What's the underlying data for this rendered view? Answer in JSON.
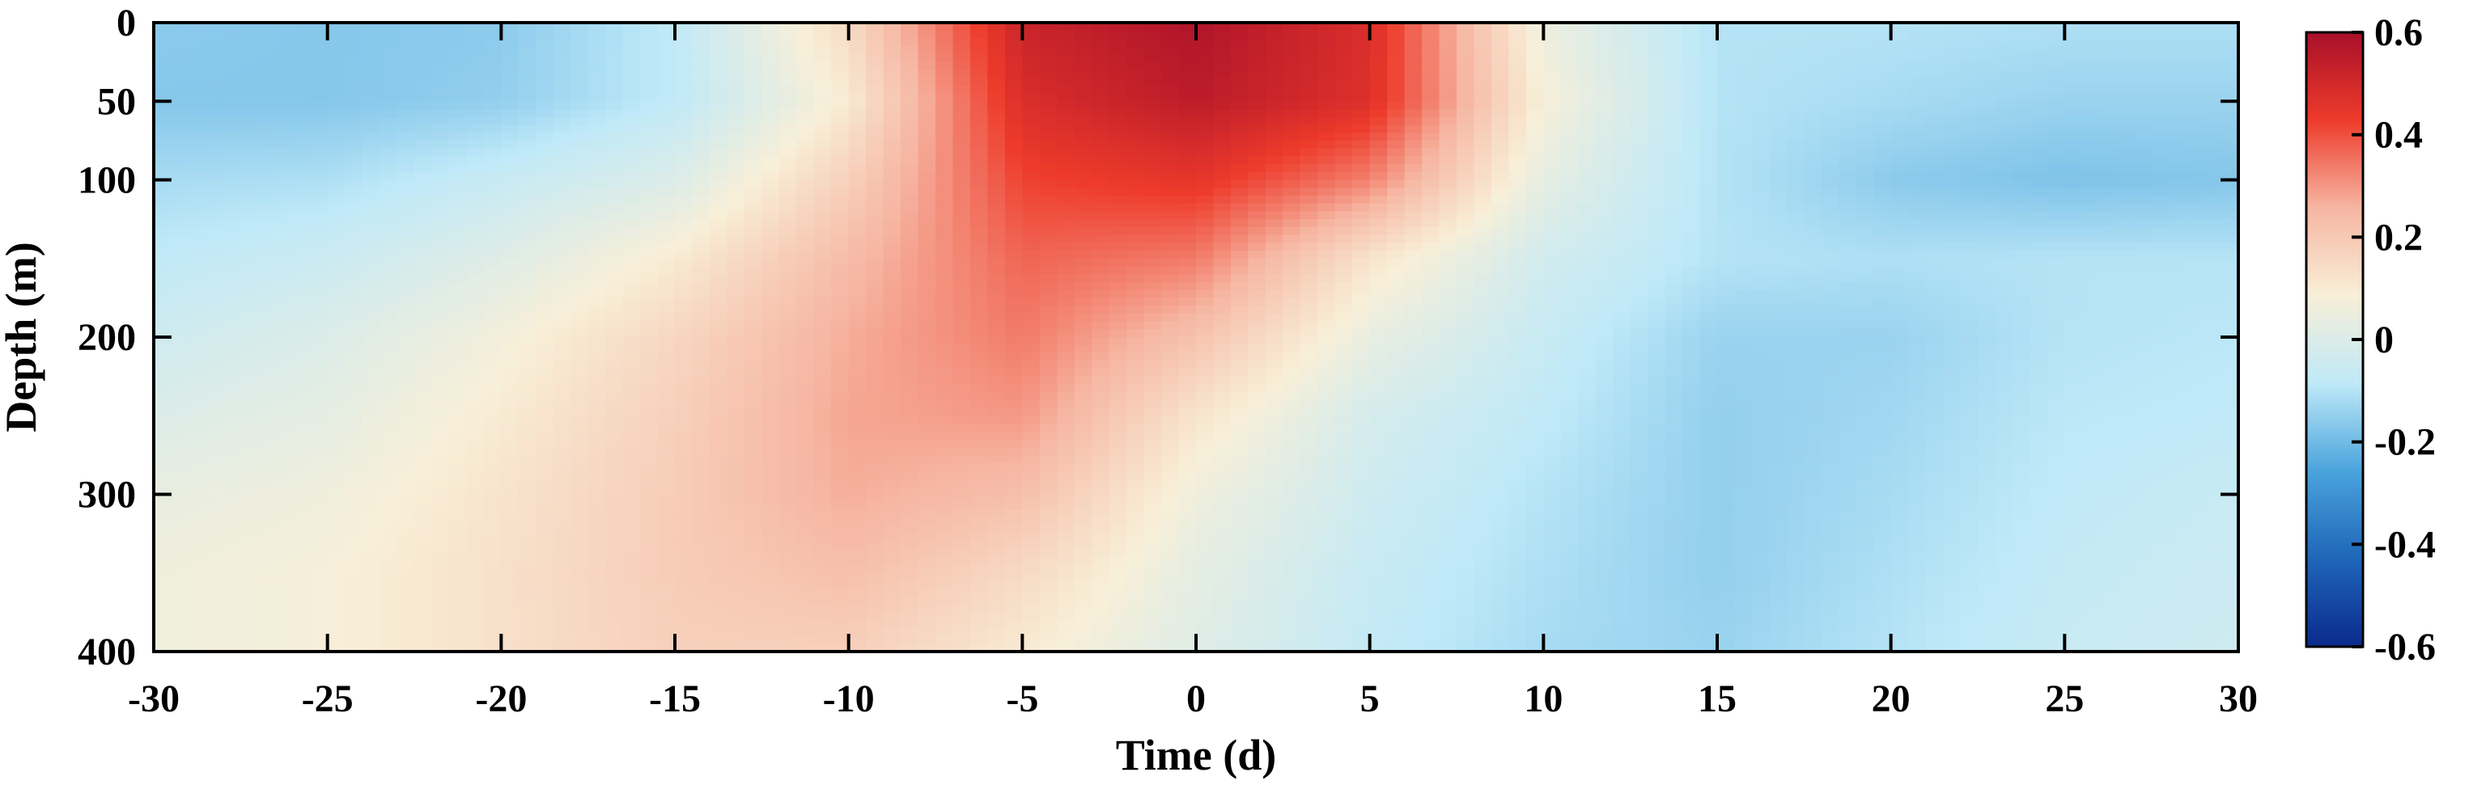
{
  "chart_data": {
    "type": "heatmap",
    "title": "",
    "xlabel": "Time (d)",
    "ylabel": "Depth (m)",
    "xlim": [
      -30,
      30
    ],
    "ylim": [
      0,
      400
    ],
    "y_reversed": true,
    "x_ticks": [
      "-30",
      "-25",
      "-20",
      "-15",
      "-10",
      "-5",
      "0",
      "5",
      "10",
      "15",
      "20",
      "25",
      "30"
    ],
    "y_ticks": [
      "0",
      "50",
      "100",
      "200",
      "300",
      "400"
    ],
    "colorbar": {
      "range": [
        -0.6,
        0.6
      ],
      "ticks": [
        "0.6",
        "0.4",
        "0.2",
        "0",
        "-0.2",
        "-0.4",
        "-0.6"
      ],
      "colors": [
        "#0b2a8c",
        "#1f66b8",
        "#4aa3dc",
        "#bfe9f8",
        "#f8efd8",
        "#f6b6a2",
        "#ee3b2b",
        "#a8102a"
      ]
    },
    "x": [
      -30,
      -25,
      -20,
      -15,
      -10,
      -5,
      0,
      5,
      10,
      15,
      20,
      25,
      30
    ],
    "y": [
      0,
      50,
      100,
      150,
      200,
      250,
      300,
      350,
      400
    ],
    "z": [
      [
        -0.16,
        -0.17,
        -0.16,
        -0.08,
        0.15,
        0.52,
        0.58,
        0.48,
        0.05,
        -0.1,
        -0.1,
        -0.11,
        -0.11
      ],
      [
        -0.17,
        -0.17,
        -0.15,
        -0.08,
        0.1,
        0.48,
        0.55,
        0.47,
        0.08,
        -0.1,
        -0.12,
        -0.14,
        -0.14
      ],
      [
        -0.12,
        -0.11,
        -0.06,
        0.0,
        0.18,
        0.42,
        0.45,
        0.33,
        0.03,
        -0.1,
        -0.16,
        -0.18,
        -0.17
      ],
      [
        -0.08,
        -0.05,
        0.01,
        0.1,
        0.24,
        0.37,
        0.34,
        0.12,
        -0.03,
        -0.1,
        -0.11,
        -0.1,
        -0.1
      ],
      [
        -0.04,
        0.0,
        0.07,
        0.16,
        0.27,
        0.34,
        0.22,
        0.04,
        -0.06,
        -0.14,
        -0.14,
        -0.1,
        -0.09
      ],
      [
        0.0,
        0.03,
        0.1,
        0.18,
        0.28,
        0.3,
        0.12,
        -0.02,
        -0.08,
        -0.15,
        -0.13,
        -0.09,
        -0.08
      ],
      [
        0.04,
        0.06,
        0.12,
        0.19,
        0.27,
        0.23,
        0.06,
        -0.04,
        -0.1,
        -0.15,
        -0.12,
        -0.08,
        -0.06
      ],
      [
        0.06,
        0.08,
        0.13,
        0.19,
        0.23,
        0.15,
        0.03,
        -0.06,
        -0.11,
        -0.15,
        -0.11,
        -0.07,
        -0.05
      ],
      [
        0.06,
        0.08,
        0.13,
        0.18,
        0.18,
        0.1,
        0.01,
        -0.07,
        -0.12,
        -0.14,
        -0.1,
        -0.06,
        -0.04
      ]
    ]
  }
}
